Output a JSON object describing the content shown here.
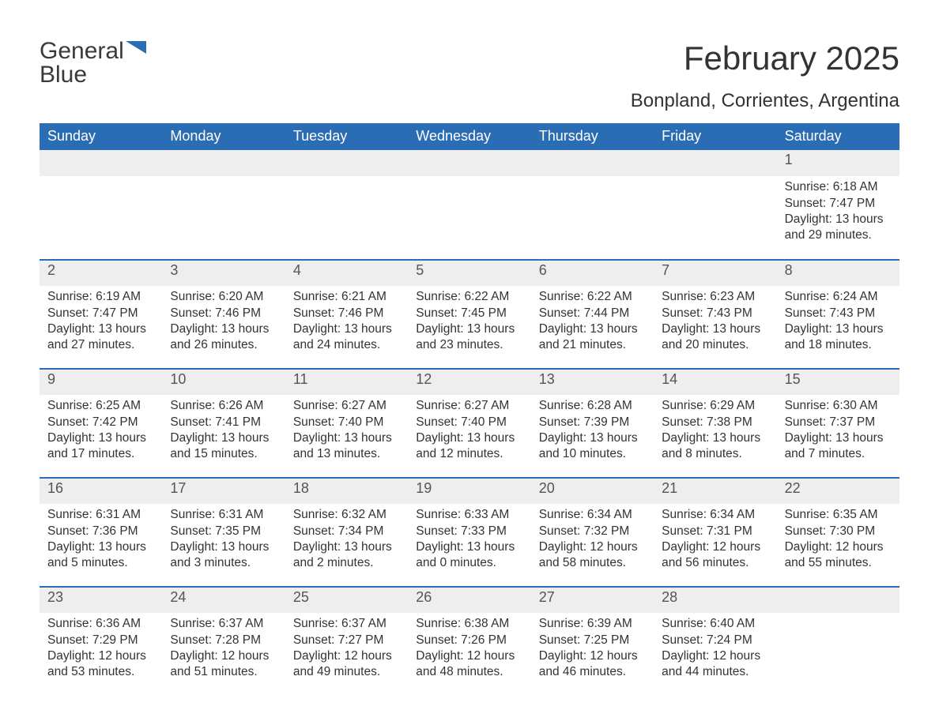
{
  "brand": {
    "word1": "General",
    "word2": "Blue"
  },
  "colors": {
    "header_bg": "#2a6db4",
    "daynum_bg": "#eeeeee",
    "text": "#333333",
    "muted": "#555555",
    "brand_blue": "#2a6db4",
    "page_bg": "#ffffff"
  },
  "calendar": {
    "title": "February 2025",
    "location": "Bonpland, Corrientes, Argentina",
    "days_of_week": [
      "Sunday",
      "Monday",
      "Tuesday",
      "Wednesday",
      "Thursday",
      "Friday",
      "Saturday"
    ],
    "weeks": [
      [
        null,
        null,
        null,
        null,
        null,
        null,
        {
          "n": "1",
          "sunrise": "Sunrise: 6:18 AM",
          "sunset": "Sunset: 7:47 PM",
          "daylight1": "Daylight: 13 hours",
          "daylight2": "and 29 minutes."
        }
      ],
      [
        {
          "n": "2",
          "sunrise": "Sunrise: 6:19 AM",
          "sunset": "Sunset: 7:47 PM",
          "daylight1": "Daylight: 13 hours",
          "daylight2": "and 27 minutes."
        },
        {
          "n": "3",
          "sunrise": "Sunrise: 6:20 AM",
          "sunset": "Sunset: 7:46 PM",
          "daylight1": "Daylight: 13 hours",
          "daylight2": "and 26 minutes."
        },
        {
          "n": "4",
          "sunrise": "Sunrise: 6:21 AM",
          "sunset": "Sunset: 7:46 PM",
          "daylight1": "Daylight: 13 hours",
          "daylight2": "and 24 minutes."
        },
        {
          "n": "5",
          "sunrise": "Sunrise: 6:22 AM",
          "sunset": "Sunset: 7:45 PM",
          "daylight1": "Daylight: 13 hours",
          "daylight2": "and 23 minutes."
        },
        {
          "n": "6",
          "sunrise": "Sunrise: 6:22 AM",
          "sunset": "Sunset: 7:44 PM",
          "daylight1": "Daylight: 13 hours",
          "daylight2": "and 21 minutes."
        },
        {
          "n": "7",
          "sunrise": "Sunrise: 6:23 AM",
          "sunset": "Sunset: 7:43 PM",
          "daylight1": "Daylight: 13 hours",
          "daylight2": "and 20 minutes."
        },
        {
          "n": "8",
          "sunrise": "Sunrise: 6:24 AM",
          "sunset": "Sunset: 7:43 PM",
          "daylight1": "Daylight: 13 hours",
          "daylight2": "and 18 minutes."
        }
      ],
      [
        {
          "n": "9",
          "sunrise": "Sunrise: 6:25 AM",
          "sunset": "Sunset: 7:42 PM",
          "daylight1": "Daylight: 13 hours",
          "daylight2": "and 17 minutes."
        },
        {
          "n": "10",
          "sunrise": "Sunrise: 6:26 AM",
          "sunset": "Sunset: 7:41 PM",
          "daylight1": "Daylight: 13 hours",
          "daylight2": "and 15 minutes."
        },
        {
          "n": "11",
          "sunrise": "Sunrise: 6:27 AM",
          "sunset": "Sunset: 7:40 PM",
          "daylight1": "Daylight: 13 hours",
          "daylight2": "and 13 minutes."
        },
        {
          "n": "12",
          "sunrise": "Sunrise: 6:27 AM",
          "sunset": "Sunset: 7:40 PM",
          "daylight1": "Daylight: 13 hours",
          "daylight2": "and 12 minutes."
        },
        {
          "n": "13",
          "sunrise": "Sunrise: 6:28 AM",
          "sunset": "Sunset: 7:39 PM",
          "daylight1": "Daylight: 13 hours",
          "daylight2": "and 10 minutes."
        },
        {
          "n": "14",
          "sunrise": "Sunrise: 6:29 AM",
          "sunset": "Sunset: 7:38 PM",
          "daylight1": "Daylight: 13 hours",
          "daylight2": "and 8 minutes."
        },
        {
          "n": "15",
          "sunrise": "Sunrise: 6:30 AM",
          "sunset": "Sunset: 7:37 PM",
          "daylight1": "Daylight: 13 hours",
          "daylight2": "and 7 minutes."
        }
      ],
      [
        {
          "n": "16",
          "sunrise": "Sunrise: 6:31 AM",
          "sunset": "Sunset: 7:36 PM",
          "daylight1": "Daylight: 13 hours",
          "daylight2": "and 5 minutes."
        },
        {
          "n": "17",
          "sunrise": "Sunrise: 6:31 AM",
          "sunset": "Sunset: 7:35 PM",
          "daylight1": "Daylight: 13 hours",
          "daylight2": "and 3 minutes."
        },
        {
          "n": "18",
          "sunrise": "Sunrise: 6:32 AM",
          "sunset": "Sunset: 7:34 PM",
          "daylight1": "Daylight: 13 hours",
          "daylight2": "and 2 minutes."
        },
        {
          "n": "19",
          "sunrise": "Sunrise: 6:33 AM",
          "sunset": "Sunset: 7:33 PM",
          "daylight1": "Daylight: 13 hours",
          "daylight2": "and 0 minutes."
        },
        {
          "n": "20",
          "sunrise": "Sunrise: 6:34 AM",
          "sunset": "Sunset: 7:32 PM",
          "daylight1": "Daylight: 12 hours",
          "daylight2": "and 58 minutes."
        },
        {
          "n": "21",
          "sunrise": "Sunrise: 6:34 AM",
          "sunset": "Sunset: 7:31 PM",
          "daylight1": "Daylight: 12 hours",
          "daylight2": "and 56 minutes."
        },
        {
          "n": "22",
          "sunrise": "Sunrise: 6:35 AM",
          "sunset": "Sunset: 7:30 PM",
          "daylight1": "Daylight: 12 hours",
          "daylight2": "and 55 minutes."
        }
      ],
      [
        {
          "n": "23",
          "sunrise": "Sunrise: 6:36 AM",
          "sunset": "Sunset: 7:29 PM",
          "daylight1": "Daylight: 12 hours",
          "daylight2": "and 53 minutes."
        },
        {
          "n": "24",
          "sunrise": "Sunrise: 6:37 AM",
          "sunset": "Sunset: 7:28 PM",
          "daylight1": "Daylight: 12 hours",
          "daylight2": "and 51 minutes."
        },
        {
          "n": "25",
          "sunrise": "Sunrise: 6:37 AM",
          "sunset": "Sunset: 7:27 PM",
          "daylight1": "Daylight: 12 hours",
          "daylight2": "and 49 minutes."
        },
        {
          "n": "26",
          "sunrise": "Sunrise: 6:38 AM",
          "sunset": "Sunset: 7:26 PM",
          "daylight1": "Daylight: 12 hours",
          "daylight2": "and 48 minutes."
        },
        {
          "n": "27",
          "sunrise": "Sunrise: 6:39 AM",
          "sunset": "Sunset: 7:25 PM",
          "daylight1": "Daylight: 12 hours",
          "daylight2": "and 46 minutes."
        },
        {
          "n": "28",
          "sunrise": "Sunrise: 6:40 AM",
          "sunset": "Sunset: 7:24 PM",
          "daylight1": "Daylight: 12 hours",
          "daylight2": "and 44 minutes."
        },
        null
      ]
    ]
  }
}
